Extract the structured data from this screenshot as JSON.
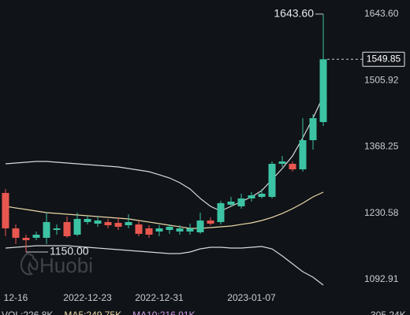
{
  "chart_data": {
    "type": "candlestick",
    "categories": [
      null,
      "12-16",
      null,
      null,
      null,
      null,
      null,
      null,
      "2022-12-23",
      null,
      null,
      null,
      null,
      null,
      null,
      "2022-12-31",
      null,
      null,
      null,
      null,
      null,
      null,
      null,
      null,
      "2023-01-07",
      null,
      null,
      null,
      null,
      null,
      null,
      null
    ],
    "open": [
      1272.6,
      1199.1,
      1179.5,
      1179.5,
      1179.5,
      1195.8,
      1212.2,
      1186.0,
      1212.2,
      1208.9,
      1212.2,
      1210.5,
      1205.6,
      1207.3,
      1199.1,
      1192.6,
      1195.8,
      1192.6,
      1192.6,
      1190.9,
      1215.4,
      1212.2,
      1248.1,
      1244.8,
      1261.2,
      1264.4,
      1264.4,
      1333.0,
      1333.0,
      1321.6,
      1382.0,
      1419.6
    ],
    "high": [
      1280.8,
      1207.3,
      1186.0,
      1192.6,
      1231.8,
      1207.3,
      1223.6,
      1231.8,
      1225.2,
      1223.6,
      1218.7,
      1221.9,
      1228.5,
      1215.4,
      1205.6,
      1205.6,
      1207.3,
      1205.6,
      1208.9,
      1231.8,
      1221.9,
      1256.3,
      1264.4,
      1271.0,
      1274.2,
      1280.8,
      1337.9,
      1349.4,
      1337.9,
      1427.8,
      1435.9,
      1643.6
    ],
    "low": [
      1182.8,
      1166.4,
      1150.0,
      1174.6,
      1166.4,
      1186.0,
      1179.5,
      1182.8,
      1207.3,
      1202.4,
      1199.1,
      1195.8,
      1199.1,
      1182.8,
      1179.5,
      1182.8,
      1187.7,
      1186.0,
      1186.0,
      1187.7,
      1205.6,
      1207.3,
      1244.8,
      1239.9,
      1254.6,
      1261.2,
      1261.2,
      1326.5,
      1316.7,
      1316.7,
      1362.4,
      1411.4
    ],
    "close": [
      1199.1,
      1179.5,
      1174.6,
      1186.0,
      1212.2,
      1199.1,
      1182.8,
      1218.7,
      1218.7,
      1215.4,
      1205.6,
      1202.4,
      1212.2,
      1187.7,
      1186.0,
      1199.1,
      1202.4,
      1199.1,
      1199.1,
      1215.4,
      1208.9,
      1251.4,
      1254.6,
      1261.2,
      1267.7,
      1271.0,
      1333.0,
      1337.9,
      1321.6,
      1382.0,
      1427.8,
      1549.85
    ],
    "up_color": "#3cc3a3",
    "down_color": "#e8574f",
    "bands": [
      {
        "color": "#d8d8d8",
        "values": [
          1333.0,
          1334.7,
          1336.3,
          1337.9,
          1337.9,
          1336.3,
          1334.7,
          1333.0,
          1331.4,
          1329.8,
          1328.1,
          1326.5,
          1323.2,
          1320.0,
          1316.7,
          1310.2,
          1303.6,
          1293.8,
          1280.8,
          1261.2,
          1244.8,
          1235.0,
          1244.8,
          1254.6,
          1264.4,
          1277.5,
          1300.4,
          1323.2,
          1349.4,
          1386.9,
          1427.8,
          1473.5
        ]
      },
      {
        "color": "#e9d8a6",
        "values": [
          1244.8,
          1241.5,
          1238.3,
          1235.0,
          1231.8,
          1230.1,
          1228.5,
          1226.8,
          1225.2,
          1223.6,
          1221.9,
          1220.3,
          1218.7,
          1215.4,
          1212.2,
          1208.9,
          1205.6,
          1202.4,
          1199.1,
          1199.1,
          1200.7,
          1202.4,
          1204.0,
          1207.3,
          1210.5,
          1215.4,
          1221.9,
          1230.1,
          1239.9,
          1251.4,
          1264.4,
          1274.2
        ]
      },
      {
        "color": "#d8d8d8",
        "values": [
          1158.2,
          1159.9,
          1161.5,
          1163.1,
          1163.1,
          1163.1,
          1163.1,
          1161.5,
          1159.9,
          1158.2,
          1156.6,
          1155.0,
          1153.4,
          1151.7,
          1150.1,
          1148.4,
          1146.8,
          1146.8,
          1150.1,
          1156.6,
          1159.9,
          1159.9,
          1158.2,
          1158.2,
          1159.9,
          1161.5,
          1156.6,
          1141.9,
          1125.6,
          1109.2,
          1097.8,
          1081.5
        ]
      }
    ],
    "ylim": [
      1068.4,
      1672.8
    ],
    "yticks": [
      {
        "value": 1643.6,
        "label": "1643.60"
      },
      1505.92,
      1368.25,
      1230.58,
      1092.91
    ],
    "grid": false,
    "high_annotation": {
      "index": 31,
      "value": 1643.6,
      "label": "1643.60"
    },
    "low_annotation": {
      "index": 2,
      "value": 1150.0,
      "label": "1150.00"
    },
    "last_price": 1549.85,
    "watermark": "Huobi",
    "volume_header": [
      {
        "text": "VOL:226.8K",
        "color": "#c9cdd3"
      },
      {
        "text": "MA5:249.75K",
        "color": "#e9d8a6"
      },
      {
        "text": "MA10:216.91K",
        "color": "#c79be0"
      }
    ],
    "volume_axis_label": "305.24K"
  }
}
